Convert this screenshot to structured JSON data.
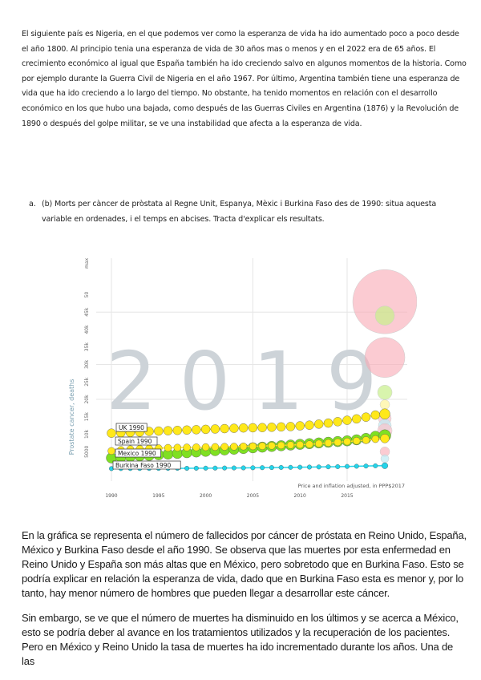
{
  "intro_paragraph": "El siguiente país es Nigeria, en el que podemos ver como la esperanza de vida ha ido aumentado poco a poco desde el año 1800. Al principio tenia una esperanza de vida de 30 años mas o menos y en el 2022 era de 65 años. El crecimiento económico al igual que España también ha ido creciendo salvo en algunos momentos de la historia. Como por ejemplo durante la Guerra Civil de Nigeria en el año 1967. Por último, Argentina también tiene una esperanza de vida que ha ido creciendo a lo largo del tiempo. No obstante, ha tenido momentos en relación con el desarrollo económico en los que hubo una bajada, como después de las Guerras Civiles en Argentina (1876) y la Revolución de 1890 o después del golpe militar, se ve una instabilidad que afecta a la esperanza de vida.",
  "question": {
    "marker": "a.",
    "text": "(b) Morts per càncer de pròstata al Regne Unit, Espanya, Mèxic i Burkina Faso des de 1990: situa aquesta variable en ordenades, i el temps en abcises. Tracta d'explicar els resultats."
  },
  "chart_data": {
    "type": "scatter",
    "watermark_year": "2019",
    "ylabel": "Prostate cancer, deaths",
    "y_ticks": [
      "5000",
      "10k",
      "15k",
      "20k",
      "25k",
      "30k",
      "35k",
      "40k",
      "45k",
      "50",
      "max"
    ],
    "x_ticks": [
      "1990",
      "1995",
      "2000",
      "2005",
      "2010",
      "2015"
    ],
    "footnote": "Price and inflation adjusted, in PPP$2017",
    "ylim": [
      0,
      60000
    ],
    "xlim": [
      1990,
      2019
    ],
    "grid": true,
    "x": [
      1990,
      1991,
      1992,
      1993,
      1994,
      1995,
      1996,
      1997,
      1998,
      1999,
      2000,
      2001,
      2002,
      2003,
      2004,
      2005,
      2006,
      2007,
      2008,
      2009,
      2010,
      2011,
      2012,
      2013,
      2014,
      2015,
      2016,
      2017,
      2018
    ],
    "series": [
      {
        "name": "UK 1990",
        "color": "#ffe81a",
        "values": [
          10300,
          10400,
          10500,
          10600,
          10800,
          10900,
          11000,
          11100,
          11200,
          11300,
          11400,
          11500,
          11600,
          11700,
          11800,
          11850,
          11900,
          12000,
          12100,
          12200,
          12400,
          12600,
          12900,
          13200,
          13600,
          14000,
          14400,
          14900,
          15500
        ]
      },
      {
        "name": "Mexico 1990",
        "color": "#7fe022",
        "values": [
          3200,
          3400,
          3600,
          3800,
          3900,
          4100,
          4300,
          4500,
          4700,
          4900,
          5100,
          5300,
          5500,
          5700,
          5900,
          6100,
          6300,
          6500,
          6700,
          6900,
          7100,
          7300,
          7500,
          7700,
          7900,
          8100,
          8400,
          8800,
          9400
        ]
      },
      {
        "name": "Spain 1990",
        "color": "#ffe81a",
        "values": [
          5200,
          5500,
          5700,
          5800,
          5900,
          6000,
          6100,
          6150,
          6200,
          6250,
          6300,
          6350,
          6400,
          6450,
          6500,
          6550,
          6600,
          6700,
          6800,
          6900,
          7000,
          7100,
          7300,
          7500,
          7700,
          7900,
          8100,
          8300,
          8600
        ]
      },
      {
        "name": "Burkina Faso 1990",
        "color": "#22d4ea",
        "values": [
          150,
          160,
          170,
          180,
          190,
          200,
          210,
          220,
          230,
          250,
          270,
          290,
          310,
          330,
          350,
          380,
          410,
          440,
          470,
          500,
          540,
          580,
          620,
          660,
          700,
          760,
          820,
          880,
          950
        ]
      }
    ]
  },
  "analysis_paragraphs": [
    "En la gráfica se representa el número de fallecidos por cáncer de próstata en Reino Unido, España, México y Burkina Faso desde el año 1990. Se observa que las muertes por esta enfermedad en Reino Unido y España son más altas que en México, pero sobretodo que en Burkina Faso. Esto se podría explicar en relación la esperanza de vida, dado que en Burkina Faso esta es menor y, por lo tanto, hay menor número de hombres que pueden llegar a desarrollar este cáncer.",
    "Sin embargo, se ve que el número de muertes ha disminuido en los últimos y se acerca a México, esto se podría deber al avance en los tratamientos utilizados y la recuperación de los pacientes. Pero en México y Reino Unido la tasa de muertes ha ido incrementado durante los años. Una de las"
  ]
}
